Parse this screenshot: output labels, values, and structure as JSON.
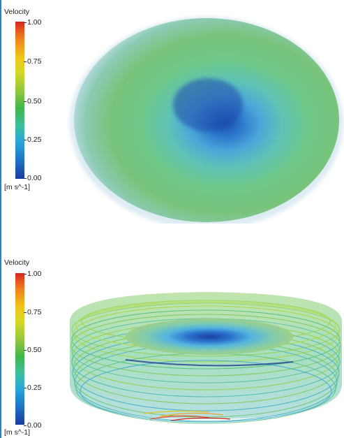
{
  "panels": [
    {
      "legend": {
        "title": "Velocity",
        "ticks": [
          "1.00",
          "0.75",
          "0.50",
          "0.25",
          "0.00"
        ],
        "unit": "[m s^-1]"
      },
      "view": "volume-rendering"
    },
    {
      "legend": {
        "title": "Velocity",
        "ticks": [
          "1.00",
          "0.75",
          "0.50",
          "0.25",
          "0.00"
        ],
        "unit": "[m s^-1]"
      },
      "view": "streamlines"
    }
  ],
  "colors": {
    "frame": "#1f86c9",
    "high": "#d7261e",
    "mid": "#41b649",
    "low": "#1b3b9c"
  }
}
